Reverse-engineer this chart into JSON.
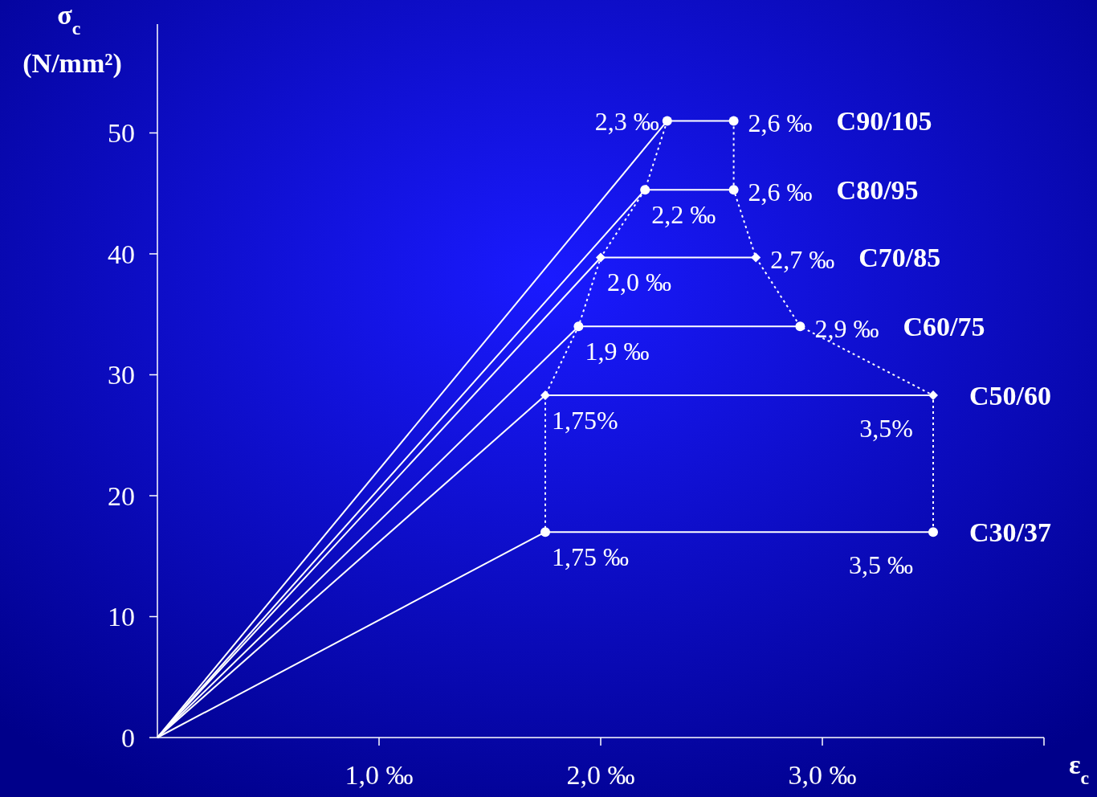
{
  "chart_data": {
    "type": "line",
    "xlabel": "ε$_{c}$",
    "ylabel": "σ$_{c}$ (N/mm²)",
    "xlim": [
      0,
      4
    ],
    "ylim": [
      0,
      59
    ],
    "xticks": [
      {
        "value": 1,
        "label": "1,0 ‰"
      },
      {
        "value": 2,
        "label": "2,0 ‰"
      },
      {
        "value": 3,
        "label": "3,0 ‰"
      },
      {
        "value": 4,
        "label": null
      }
    ],
    "yticks": [
      0,
      10,
      20,
      30,
      40,
      50
    ],
    "grid": false,
    "series": [
      {
        "name": "C90/105",
        "color": "#ffffff",
        "marker": "circle",
        "line_style": "solid",
        "x": [
          0,
          2.3,
          2.6
        ],
        "values": [
          0,
          51,
          51
        ]
      },
      {
        "name": "C80/95",
        "color": "#ffffff",
        "marker": "circle",
        "line_style": "solid",
        "x": [
          0,
          2.2,
          2.6
        ],
        "values": [
          0,
          45.3,
          45.3
        ]
      },
      {
        "name": "C70/85",
        "color": "#ffffff",
        "marker": "diamond",
        "line_style": "solid",
        "x": [
          0,
          2.0,
          2.7
        ],
        "values": [
          0,
          39.7,
          39.7
        ]
      },
      {
        "name": "C60/75",
        "color": "#ffffff",
        "marker": "circle",
        "line_style": "solid",
        "x": [
          0,
          1.9,
          2.9
        ],
        "values": [
          0,
          34,
          34
        ]
      },
      {
        "name": "C50/60",
        "color": "#ffffff",
        "marker": "diamond",
        "line_style": "solid",
        "x": [
          0,
          1.75,
          3.5
        ],
        "values": [
          0,
          28.3,
          28.3
        ]
      },
      {
        "name": "C30/37",
        "color": "#ffffff",
        "marker": "circle",
        "line_style": "solid",
        "x": [
          0,
          1.75,
          3.5
        ],
        "values": [
          0,
          17,
          17
        ]
      },
      {
        "color": "#ffffff",
        "marker": "none",
        "line_style": "dotted",
        "x": [
          2.3,
          2.2,
          2.0,
          1.9,
          1.75,
          1.75
        ],
        "values": [
          51,
          45.3,
          39.7,
          34,
          28.3,
          17
        ]
      },
      {
        "color": "#ffffff",
        "marker": "none",
        "line_style": "dotted",
        "x": [
          2.6,
          2.6,
          2.7,
          2.9,
          3.5,
          3.5
        ],
        "values": [
          51,
          45.3,
          39.7,
          34,
          28.3,
          17
        ]
      }
    ],
    "annotations": [
      {
        "text": "2,3 ‰",
        "x": 2.3,
        "y": 51
      },
      {
        "text": "2,6 ‰",
        "x": 2.6,
        "y": 51
      },
      {
        "text": "2,2 ‰",
        "x": 2.2,
        "y": 45.3
      },
      {
        "text": "2,6 ‰",
        "x": 2.6,
        "y": 45.3
      },
      {
        "text": "2,0 ‰",
        "x": 2.0,
        "y": 39.7
      },
      {
        "text": "2,7 ‰",
        "x": 2.7,
        "y": 39.7
      },
      {
        "text": "1,9 ‰",
        "x": 1.9,
        "y": 34
      },
      {
        "text": "2,9 ‰",
        "x": 2.9,
        "y": 34
      },
      {
        "text": "1,75%",
        "x": 1.75,
        "y": 28.3
      },
      {
        "text": "3,5%",
        "x": 3.5,
        "y": 28.3
      },
      {
        "text": "1,75 ‰",
        "x": 1.75,
        "y": 17
      },
      {
        "text": "3,5 ‰",
        "x": 3.5,
        "y": 17
      }
    ]
  }
}
